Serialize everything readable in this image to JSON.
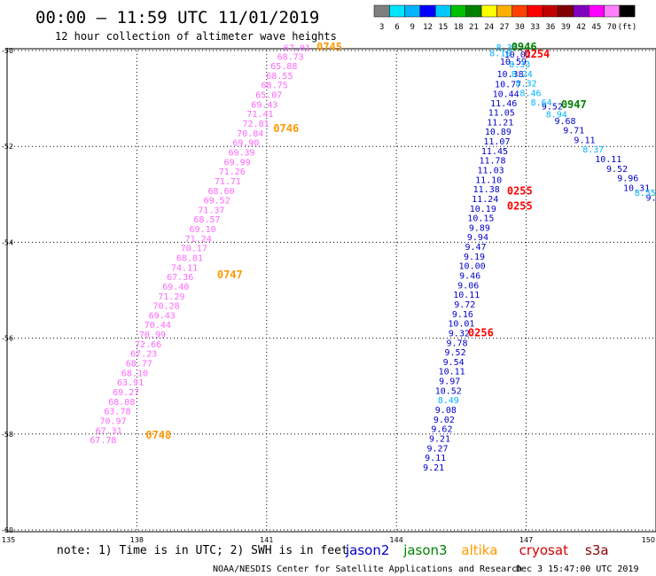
{
  "header": {
    "title": "00:00 – 11:59 UTC 11/01/2019",
    "subtitle": "12 hour collection of altimeter wave heights"
  },
  "scale": {
    "labels": [
      "3",
      "6",
      "9",
      "12",
      "15",
      "18",
      "21",
      "24",
      "27",
      "30",
      "33",
      "36",
      "39",
      "42",
      "45",
      "70",
      "(ft)"
    ],
    "colors": [
      "#7f7f7f",
      "#00e5ff",
      "#00b4ff",
      "#0000ff",
      "#00c8ff",
      "#00c000",
      "#008000",
      "#ffff00",
      "#ffb000",
      "#ff4000",
      "#ff0000",
      "#c00000",
      "#800000",
      "#8000c0",
      "#ff00ff",
      "#ff80ff",
      "#000000"
    ]
  },
  "axes": {
    "y_ticks": [
      "-50",
      "-52",
      "-54",
      "-56",
      "-58",
      "-60"
    ],
    "x_ticks": [
      "135",
      "138",
      "141",
      "144",
      "147",
      "150"
    ]
  },
  "satellites": {
    "note": "note: 1) Time is in UTC; 2) SWH is in feet",
    "names": [
      {
        "name": "jason2",
        "color": "#0000c8"
      },
      {
        "name": "jason3",
        "color": "#008000"
      },
      {
        "name": "altika",
        "color": "#ff9900"
      },
      {
        "name": "cryosat",
        "color": "#d40000"
      },
      {
        "name": "s3a",
        "color": "#8b0000"
      }
    ]
  },
  "footer": {
    "agency": "NOAA/NESDIS Center for Satellite Applications and Research",
    "timestamp": "Dec  3 15:47:00 UTC 2019"
  },
  "chart_data": {
    "type": "scatter",
    "xlim": [
      135,
      150
    ],
    "ylim": [
      -60,
      -50
    ],
    "tracks": [
      {
        "satellite": "s3a",
        "color": "#ff66ff",
        "points": [
          {
            "lon": 141.7,
            "lat": -50.01,
            "v": "67.01"
          },
          {
            "lon": 141.55,
            "lat": -50.19,
            "v": "68.73"
          },
          {
            "lon": 141.4,
            "lat": -50.39,
            "v": "65.88"
          },
          {
            "lon": 141.3,
            "lat": -50.59,
            "v": "68.55"
          },
          {
            "lon": 141.18,
            "lat": -50.79,
            "v": "68.75"
          },
          {
            "lon": 141.05,
            "lat": -50.99,
            "v": "65.07"
          },
          {
            "lon": 140.95,
            "lat": -51.19,
            "v": "69.43"
          },
          {
            "lon": 140.85,
            "lat": -51.39,
            "v": "71.41"
          },
          {
            "lon": 140.75,
            "lat": -51.59,
            "v": "72.81"
          },
          {
            "lon": 140.62,
            "lat": -51.79,
            "v": "70.84"
          },
          {
            "lon": 140.52,
            "lat": -51.99,
            "v": "69.90"
          },
          {
            "lon": 140.42,
            "lat": -52.19,
            "v": "69.39"
          },
          {
            "lon": 140.32,
            "lat": -52.39,
            "v": "69.99"
          },
          {
            "lon": 140.2,
            "lat": -52.59,
            "v": "71.26"
          },
          {
            "lon": 140.1,
            "lat": -52.79,
            "v": "71.71"
          },
          {
            "lon": 139.95,
            "lat": -52.99,
            "v": "68.60"
          },
          {
            "lon": 139.85,
            "lat": -53.19,
            "v": "69.52"
          },
          {
            "lon": 139.72,
            "lat": -53.39,
            "v": "71.37"
          },
          {
            "lon": 139.62,
            "lat": -53.59,
            "v": "68.57"
          },
          {
            "lon": 139.52,
            "lat": -53.79,
            "v": "69.10"
          },
          {
            "lon": 139.42,
            "lat": -53.99,
            "v": "71.24"
          },
          {
            "lon": 139.32,
            "lat": -54.19,
            "v": "70.17"
          },
          {
            "lon": 139.22,
            "lat": -54.39,
            "v": "68.81"
          },
          {
            "lon": 139.1,
            "lat": -54.59,
            "v": "74.11"
          },
          {
            "lon": 139.0,
            "lat": -54.79,
            "v": "67.36"
          },
          {
            "lon": 138.9,
            "lat": -54.99,
            "v": "69.40"
          },
          {
            "lon": 138.8,
            "lat": -55.19,
            "v": "71.29"
          },
          {
            "lon": 138.68,
            "lat": -55.39,
            "v": "70.28"
          },
          {
            "lon": 138.58,
            "lat": -55.59,
            "v": "69.43"
          },
          {
            "lon": 138.48,
            "lat": -55.79,
            "v": "70.44"
          },
          {
            "lon": 138.36,
            "lat": -55.99,
            "v": "70.99"
          },
          {
            "lon": 138.26,
            "lat": -56.19,
            "v": "72.66"
          },
          {
            "lon": 138.16,
            "lat": -56.39,
            "v": "67.23"
          },
          {
            "lon": 138.05,
            "lat": -56.59,
            "v": "68.77"
          },
          {
            "lon": 137.95,
            "lat": -56.79,
            "v": "68.10"
          },
          {
            "lon": 137.85,
            "lat": -56.99,
            "v": "63.91"
          },
          {
            "lon": 137.75,
            "lat": -57.19,
            "v": "69.27"
          },
          {
            "lon": 137.65,
            "lat": -57.39,
            "v": "68.08"
          },
          {
            "lon": 137.55,
            "lat": -57.59,
            "v": "63.78"
          },
          {
            "lon": 137.45,
            "lat": -57.79,
            "v": "70.97"
          },
          {
            "lon": 137.35,
            "lat": -57.99,
            "v": "67.31"
          },
          {
            "lon": 137.22,
            "lat": -58.19,
            "v": "67.78"
          }
        ]
      },
      {
        "satellite": "jason2",
        "color": "#0000c8",
        "points": [
          {
            "lon": 146.8,
            "lat": -50.15,
            "v": "10.02"
          },
          {
            "lon": 146.7,
            "lat": -50.3,
            "v": "10.59"
          },
          {
            "lon": 146.63,
            "lat": -50.55,
            "v": "10.38"
          },
          {
            "lon": 146.58,
            "lat": -50.77,
            "v": "10.77"
          },
          {
            "lon": 146.53,
            "lat": -50.97,
            "v": "10.44"
          },
          {
            "lon": 146.48,
            "lat": -51.16,
            "v": "11.46"
          },
          {
            "lon": 146.43,
            "lat": -51.36,
            "v": "11.05"
          },
          {
            "lon": 146.4,
            "lat": -51.56,
            "v": "11.21"
          },
          {
            "lon": 146.35,
            "lat": -51.76,
            "v": "10.89"
          },
          {
            "lon": 146.32,
            "lat": -51.96,
            "v": "11.07"
          },
          {
            "lon": 146.27,
            "lat": -52.16,
            "v": "11.45"
          },
          {
            "lon": 146.22,
            "lat": -52.36,
            "v": "11.78"
          },
          {
            "lon": 146.18,
            "lat": -52.56,
            "v": "11.03"
          },
          {
            "lon": 146.13,
            "lat": -52.76,
            "v": "11.10"
          },
          {
            "lon": 146.08,
            "lat": -52.96,
            "v": "11.38"
          },
          {
            "lon": 146.05,
            "lat": -53.16,
            "v": "11.24"
          },
          {
            "lon": 146.0,
            "lat": -53.36,
            "v": "10.19"
          },
          {
            "lon": 145.95,
            "lat": -53.56,
            "v": "10.15"
          },
          {
            "lon": 145.92,
            "lat": -53.76,
            "v": "9.89"
          },
          {
            "lon": 145.88,
            "lat": -53.96,
            "v": "9.94"
          },
          {
            "lon": 145.83,
            "lat": -54.16,
            "v": "9.47"
          },
          {
            "lon": 145.8,
            "lat": -54.36,
            "v": "9.19"
          },
          {
            "lon": 145.75,
            "lat": -54.56,
            "v": "10.00"
          },
          {
            "lon": 145.7,
            "lat": -54.76,
            "v": "9.46"
          },
          {
            "lon": 145.66,
            "lat": -54.96,
            "v": "9.06"
          },
          {
            "lon": 145.62,
            "lat": -55.16,
            "v": "10.11"
          },
          {
            "lon": 145.58,
            "lat": -55.36,
            "v": "9.72"
          },
          {
            "lon": 145.53,
            "lat": -55.56,
            "v": "9.16"
          },
          {
            "lon": 145.5,
            "lat": -55.76,
            "v": "10.01"
          },
          {
            "lon": 145.45,
            "lat": -55.96,
            "v": "9.32"
          },
          {
            "lon": 145.4,
            "lat": -56.16,
            "v": "9.78"
          },
          {
            "lon": 145.36,
            "lat": -56.36,
            "v": "9.52"
          },
          {
            "lon": 145.32,
            "lat": -56.56,
            "v": "9.54"
          },
          {
            "lon": 145.28,
            "lat": -56.76,
            "v": "10.11"
          },
          {
            "lon": 145.23,
            "lat": -56.96,
            "v": "9.97"
          },
          {
            "lon": 145.2,
            "lat": -57.16,
            "v": "10.52"
          },
          {
            "lon": 145.14,
            "lat": -57.56,
            "v": "9.08"
          },
          {
            "lon": 145.1,
            "lat": -57.76,
            "v": "9.02"
          },
          {
            "lon": 145.05,
            "lat": -57.96,
            "v": "9.62"
          },
          {
            "lon": 145.0,
            "lat": -58.16,
            "v": "9.21"
          },
          {
            "lon": 144.95,
            "lat": -58.36,
            "v": "9.27"
          },
          {
            "lon": 144.9,
            "lat": -58.56,
            "v": "9.11"
          },
          {
            "lon": 144.86,
            "lat": -58.76,
            "v": "9.21"
          },
          {
            "lon": 147.6,
            "lat": -51.23,
            "v": "9.52"
          },
          {
            "lon": 147.9,
            "lat": -51.53,
            "v": "9.68"
          },
          {
            "lon": 148.1,
            "lat": -51.73,
            "v": "9.71"
          },
          {
            "lon": 148.35,
            "lat": -51.93,
            "v": "9.11"
          },
          {
            "lon": 148.9,
            "lat": -52.33,
            "v": "10.11"
          },
          {
            "lon": 149.1,
            "lat": -52.53,
            "v": "9.52"
          },
          {
            "lon": 149.35,
            "lat": -52.73,
            "v": "9.96"
          },
          {
            "lon": 149.55,
            "lat": -52.93,
            "v": "10.31"
          },
          {
            "lon": 149.95,
            "lat": -53.13,
            "v": "9.4"
          }
        ]
      },
      {
        "satellite": "jason2-light",
        "color": "#00b4ff",
        "points": [
          {
            "lon": 146.55,
            "lat": -50.0,
            "v": "8.33"
          },
          {
            "lon": 146.4,
            "lat": -50.12,
            "v": "8.10"
          },
          {
            "lon": 146.85,
            "lat": -50.35,
            "v": "8.33"
          },
          {
            "lon": 146.9,
            "lat": -50.55,
            "v": "8.24"
          },
          {
            "lon": 147.0,
            "lat": -50.75,
            "v": "8.32"
          },
          {
            "lon": 147.1,
            "lat": -50.95,
            "v": "8.46"
          },
          {
            "lon": 147.35,
            "lat": -51.15,
            "v": "8.64"
          },
          {
            "lon": 147.7,
            "lat": -51.4,
            "v": "8.94"
          },
          {
            "lon": 148.55,
            "lat": -52.13,
            "v": "8.37"
          },
          {
            "lon": 149.75,
            "lat": -53.03,
            "v": "8.55"
          },
          {
            "lon": 145.2,
            "lat": -57.36,
            "v": "8.49"
          }
        ]
      }
    ],
    "time_labels": [
      {
        "lon": 142.45,
        "lat": -50.0,
        "text": "0745",
        "color": "#ff9900"
      },
      {
        "lon": 141.45,
        "lat": -51.7,
        "text": "0746",
        "color": "#ff9900"
      },
      {
        "lon": 140.15,
        "lat": -54.75,
        "text": "0747",
        "color": "#ff9900"
      },
      {
        "lon": 138.5,
        "lat": -58.1,
        "text": "0748",
        "color": "#ff9900"
      },
      {
        "lon": 146.95,
        "lat": -50.0,
        "text": "0946",
        "color": "#008000"
      },
      {
        "lon": 148.1,
        "lat": -51.2,
        "text": "0947",
        "color": "#008000"
      },
      {
        "lon": 147.25,
        "lat": -50.15,
        "text": "0254",
        "color": "#ff0000"
      },
      {
        "lon": 146.85,
        "lat": -53.0,
        "text": "0255",
        "color": "#ff0000"
      },
      {
        "lon": 146.85,
        "lat": -53.32,
        "text": "0255",
        "color": "#ff0000"
      },
      {
        "lon": 145.95,
        "lat": -55.96,
        "text": "0256",
        "color": "#ff0000"
      }
    ]
  }
}
